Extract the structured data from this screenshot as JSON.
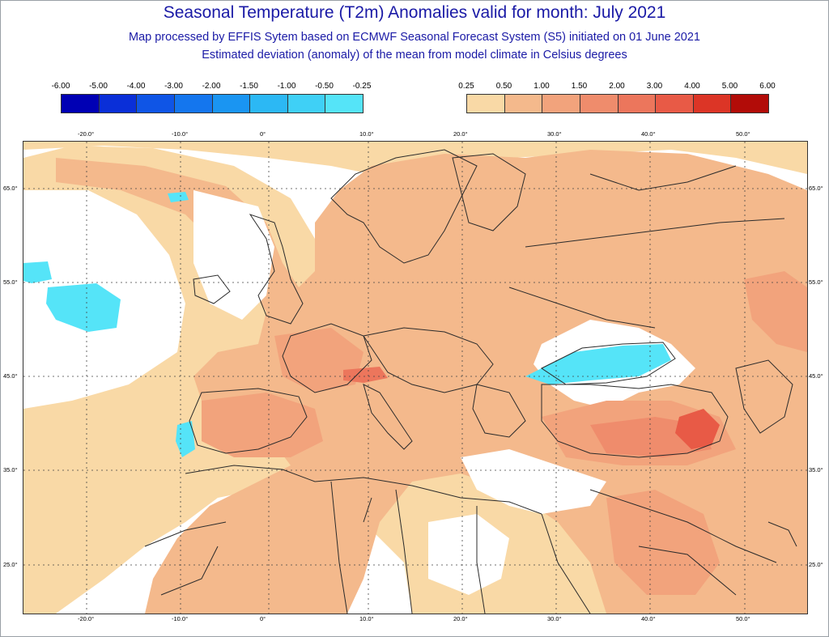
{
  "header": {
    "title": "Seasonal Temperature (T2m) Anomalies valid for month: July 2021",
    "subtitle1": "Map processed by EFFIS Sytem based on ECMWF Seasonal Forecast System (S5) initiated on 01 June 2021",
    "subtitle2": "Estimated deviation (anomaly) of the mean from model climate in Celsius degrees"
  },
  "legend_negative": {
    "labels": [
      "-6.00",
      "-5.00",
      "-4.00",
      "-3.00",
      "-2.00",
      "-1.50",
      "-1.00",
      "-0.50",
      "-0.25"
    ],
    "colors": [
      "#0000b4",
      "#0a2fd8",
      "#0f55e6",
      "#1476ee",
      "#1a95f2",
      "#2cb8f4",
      "#3fd0f6",
      "#55e4f8"
    ]
  },
  "legend_positive": {
    "labels": [
      "0.25",
      "0.50",
      "1.00",
      "1.50",
      "2.00",
      "3.00",
      "4.00",
      "5.00",
      "6.00"
    ],
    "colors": [
      "#f9d9a6",
      "#f4b98c",
      "#f2a37c",
      "#ef8c6c",
      "#ec765c",
      "#e85a46",
      "#dc3526",
      "#b20c08"
    ]
  },
  "axes": {
    "lon_labels": [
      "-20.0°",
      "-10.0°",
      "0°",
      "10.0°",
      "20.0°",
      "30.0°",
      "40.0°",
      "50.0°"
    ],
    "lat_labels": [
      "65.0°",
      "55.0°",
      "45.0°",
      "35.0°",
      "25.0°"
    ]
  },
  "colors": {
    "title": "#1a1aa6",
    "anomaly_025_050": "#f9d9a6",
    "anomaly_050_100": "#f4b98c",
    "anomaly_100_150": "#f2a37c",
    "anomaly_150_200": "#ef8c6c",
    "anomaly_200_300": "#ec765c",
    "anomaly_neg_025": "#55e4f8",
    "neutral": "#ffffff",
    "borders": "#2b2b2b"
  }
}
